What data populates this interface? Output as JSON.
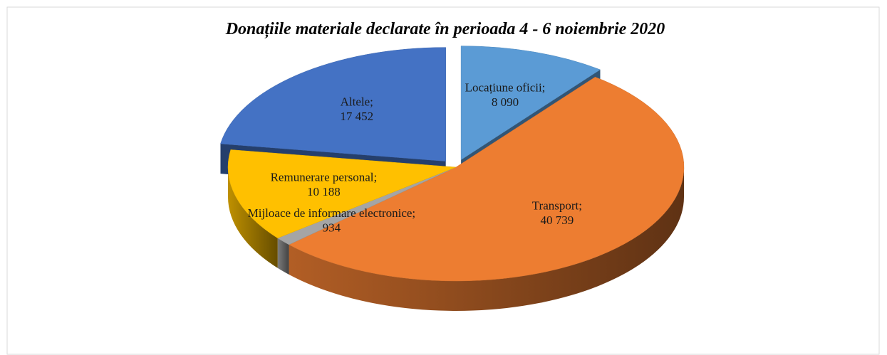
{
  "chart_data": {
    "type": "pie",
    "title": "Donațiile materiale declarate în perioada 4 - 6 noiembrie 2020",
    "categories": [
      "Locațiune oficii;",
      "Transport;",
      "Mijloace de informare electronice;",
      "Remunerare personal;",
      "Altele;"
    ],
    "values": [
      8090,
      40739,
      934,
      10188,
      17452
    ],
    "value_labels": [
      "8 090",
      "40 739",
      "934",
      "10 188",
      "17 452"
    ],
    "colors": [
      "#5b9bd5",
      "#ed7d31",
      "#a5a5a5",
      "#ffc000",
      "#4472c4"
    ],
    "exploded": [
      true,
      false,
      false,
      false,
      true
    ]
  }
}
